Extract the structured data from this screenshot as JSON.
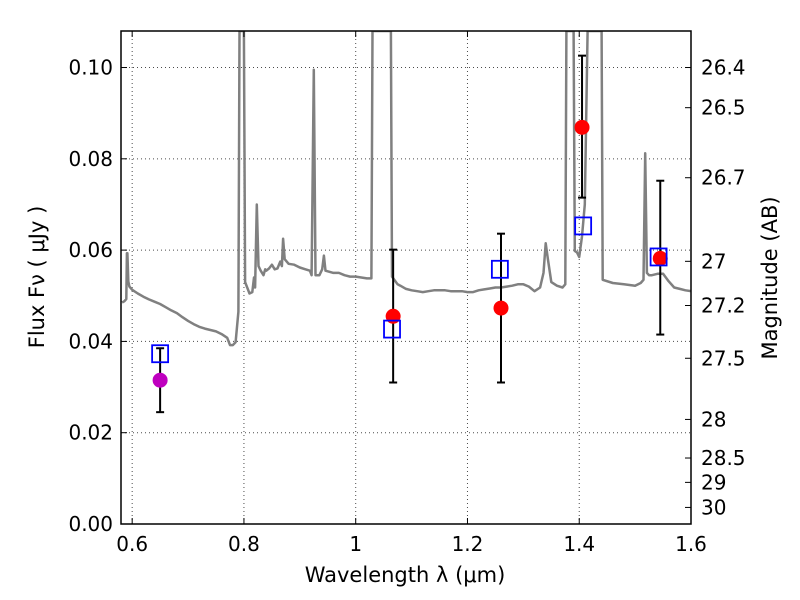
{
  "chart_data": {
    "type": "scatter",
    "title": "",
    "xlabel": "Wavelength  λ (μm)",
    "ylabel": "Flux  Fν  ( μJy )",
    "ylabel_right": "Magnitude (AB)",
    "xlim": [
      0.58,
      1.6
    ],
    "ylim": [
      0.0,
      0.108
    ],
    "grid": true,
    "x_ticks": [
      {
        "value": 0.6,
        "label": "0.6"
      },
      {
        "value": 0.8,
        "label": "0.8"
      },
      {
        "value": 1.0,
        "label": "1"
      },
      {
        "value": 1.2,
        "label": "1.2"
      },
      {
        "value": 1.4,
        "label": "1.4"
      },
      {
        "value": 1.6,
        "label": "1.6"
      }
    ],
    "y_ticks": [
      {
        "value": 0.0,
        "label": "0.00"
      },
      {
        "value": 0.02,
        "label": "0.02"
      },
      {
        "value": 0.04,
        "label": "0.04"
      },
      {
        "value": 0.06,
        "label": "0.06"
      },
      {
        "value": 0.08,
        "label": "0.08"
      },
      {
        "value": 0.1,
        "label": "0.10"
      }
    ],
    "right_ticks": [
      {
        "label": "26.4",
        "mag": 26.4
      },
      {
        "label": "26.5",
        "mag": 26.5
      },
      {
        "label": "26.7",
        "mag": 26.7
      },
      {
        "label": "27",
        "mag": 27.0
      },
      {
        "label": "27.2",
        "mag": 27.2
      },
      {
        "label": "27.5",
        "mag": 27.5
      },
      {
        "label": "28",
        "mag": 28.0
      },
      {
        "label": "28.5",
        "mag": 28.5
      },
      {
        "label": "29",
        "mag": 29.0
      },
      {
        "label": "30",
        "mag": 30.0
      }
    ],
    "series": [
      {
        "name": "Model spectrum",
        "kind": "line",
        "color": "#808080",
        "points": [
          [
            0.582,
            0.0485
          ],
          [
            0.586,
            0.0488
          ],
          [
            0.588,
            0.0491
          ],
          [
            0.5895,
            0.0493
          ],
          [
            0.5905,
            0.0593
          ],
          [
            0.5915,
            0.0593
          ],
          [
            0.593,
            0.0532
          ],
          [
            0.595,
            0.052
          ],
          [
            0.6,
            0.0513
          ],
          [
            0.61,
            0.0505
          ],
          [
            0.62,
            0.0498
          ],
          [
            0.63,
            0.0492
          ],
          [
            0.64,
            0.0487
          ],
          [
            0.65,
            0.0482
          ],
          [
            0.66,
            0.0475
          ],
          [
            0.67,
            0.0468
          ],
          [
            0.68,
            0.0462
          ],
          [
            0.69,
            0.0453
          ],
          [
            0.7,
            0.0445
          ],
          [
            0.71,
            0.0438
          ],
          [
            0.72,
            0.0432
          ],
          [
            0.73,
            0.0428
          ],
          [
            0.74,
            0.0425
          ],
          [
            0.75,
            0.0422
          ],
          [
            0.76,
            0.0416
          ],
          [
            0.77,
            0.0408
          ],
          [
            0.775,
            0.0392
          ],
          [
            0.78,
            0.0392
          ],
          [
            0.785,
            0.0398
          ],
          [
            0.79,
            0.0465
          ],
          [
            0.792,
            0.108
          ],
          [
            0.8,
            0.108
          ],
          [
            0.802,
            0.053
          ],
          [
            0.81,
            0.0505
          ],
          [
            0.815,
            0.0508
          ],
          [
            0.818,
            0.054
          ],
          [
            0.82,
            0.0518
          ],
          [
            0.823,
            0.07
          ],
          [
            0.826,
            0.0565
          ],
          [
            0.83,
            0.0555
          ],
          [
            0.835,
            0.0545
          ],
          [
            0.838,
            0.0558
          ],
          [
            0.84,
            0.0555
          ],
          [
            0.845,
            0.056
          ],
          [
            0.85,
            0.0568
          ],
          [
            0.855,
            0.0558
          ],
          [
            0.86,
            0.056
          ],
          [
            0.865,
            0.0575
          ],
          [
            0.868,
            0.0565
          ],
          [
            0.87,
            0.0625
          ],
          [
            0.873,
            0.058
          ],
          [
            0.88,
            0.057
          ],
          [
            0.89,
            0.0568
          ],
          [
            0.9,
            0.0562
          ],
          [
            0.91,
            0.0558
          ],
          [
            0.918,
            0.0555
          ],
          [
            0.921,
            0.0545
          ],
          [
            0.925,
            0.0995
          ],
          [
            0.928,
            0.0545
          ],
          [
            0.935,
            0.0545
          ],
          [
            0.94,
            0.0558
          ],
          [
            0.943,
            0.0588
          ],
          [
            0.946,
            0.0555
          ],
          [
            0.96,
            0.055
          ],
          [
            0.97,
            0.055
          ],
          [
            0.98,
            0.0545
          ],
          [
            0.99,
            0.0542
          ],
          [
            1.0,
            0.0542
          ],
          [
            1.01,
            0.054
          ],
          [
            1.02,
            0.0538
          ],
          [
            1.028,
            0.0538
          ],
          [
            1.03,
            0.108
          ],
          [
            1.063,
            0.108
          ],
          [
            1.065,
            0.0542
          ],
          [
            1.075,
            0.0525
          ],
          [
            1.08,
            0.0522
          ],
          [
            1.09,
            0.0515
          ],
          [
            1.1,
            0.0512
          ],
          [
            1.11,
            0.051
          ],
          [
            1.12,
            0.0508
          ],
          [
            1.13,
            0.051
          ],
          [
            1.14,
            0.0512
          ],
          [
            1.15,
            0.0512
          ],
          [
            1.16,
            0.0512
          ],
          [
            1.17,
            0.051
          ],
          [
            1.18,
            0.051
          ],
          [
            1.19,
            0.051
          ],
          [
            1.2,
            0.0508
          ],
          [
            1.21,
            0.0508
          ],
          [
            1.22,
            0.0512
          ],
          [
            1.23,
            0.0514
          ],
          [
            1.24,
            0.0516
          ],
          [
            1.25,
            0.0518
          ],
          [
            1.26,
            0.0518
          ],
          [
            1.27,
            0.052
          ],
          [
            1.28,
            0.0522
          ],
          [
            1.29,
            0.0525
          ],
          [
            1.3,
            0.0525
          ],
          [
            1.31,
            0.052
          ],
          [
            1.32,
            0.051
          ],
          [
            1.33,
            0.0518
          ],
          [
            1.336,
            0.055
          ],
          [
            1.34,
            0.0615
          ],
          [
            1.344,
            0.058
          ],
          [
            1.35,
            0.053
          ],
          [
            1.36,
            0.0522
          ],
          [
            1.37,
            0.0518
          ],
          [
            1.375,
            0.0525
          ],
          [
            1.377,
            0.108
          ],
          [
            1.39,
            0.108
          ],
          [
            1.392,
            0.0598
          ],
          [
            1.396,
            0.0595
          ],
          [
            1.4,
            0.0585
          ],
          [
            1.405,
            0.063
          ],
          [
            1.41,
            0.07
          ],
          [
            1.415,
            0.108
          ],
          [
            1.44,
            0.108
          ],
          [
            1.442,
            0.0535
          ],
          [
            1.46,
            0.0528
          ],
          [
            1.48,
            0.0525
          ],
          [
            1.5,
            0.0522
          ],
          [
            1.51,
            0.0528
          ],
          [
            1.515,
            0.0535
          ],
          [
            1.518,
            0.0812
          ],
          [
            1.521,
            0.055
          ],
          [
            1.525,
            0.0545
          ],
          [
            1.53,
            0.0545
          ],
          [
            1.54,
            0.0548
          ],
          [
            1.55,
            0.0548
          ],
          [
            1.56,
            0.0532
          ],
          [
            1.57,
            0.0518
          ],
          [
            1.58,
            0.0515
          ],
          [
            1.59,
            0.0512
          ],
          [
            1.6,
            0.051
          ]
        ]
      },
      {
        "name": "Observed photometry (red)",
        "kind": "points",
        "color": "#ff0000",
        "points": [
          {
            "x": 1.067,
            "y": 0.0455,
            "ylo": 0.031,
            "yhi": 0.0601
          },
          {
            "x": 1.26,
            "y": 0.0473,
            "ylo": 0.031,
            "yhi": 0.0636
          },
          {
            "x": 1.405,
            "y": 0.0869,
            "ylo": 0.0715,
            "yhi": 0.1026
          },
          {
            "x": 1.545,
            "y": 0.0582,
            "ylo": 0.0415,
            "yhi": 0.0752
          }
        ]
      },
      {
        "name": "Observed photometry (magenta)",
        "kind": "points",
        "color": "#bf00bf",
        "points": [
          {
            "x": 0.65,
            "y": 0.0315,
            "ylo": 0.0245,
            "yhi": 0.0385
          }
        ]
      },
      {
        "name": "Model photometry",
        "kind": "squares",
        "color": "#0000ff",
        "points": [
          {
            "x": 0.65,
            "y": 0.0373
          },
          {
            "x": 1.065,
            "y": 0.0427
          },
          {
            "x": 1.258,
            "y": 0.0558
          },
          {
            "x": 1.407,
            "y": 0.0653
          },
          {
            "x": 1.542,
            "y": 0.0585
          }
        ]
      }
    ]
  }
}
